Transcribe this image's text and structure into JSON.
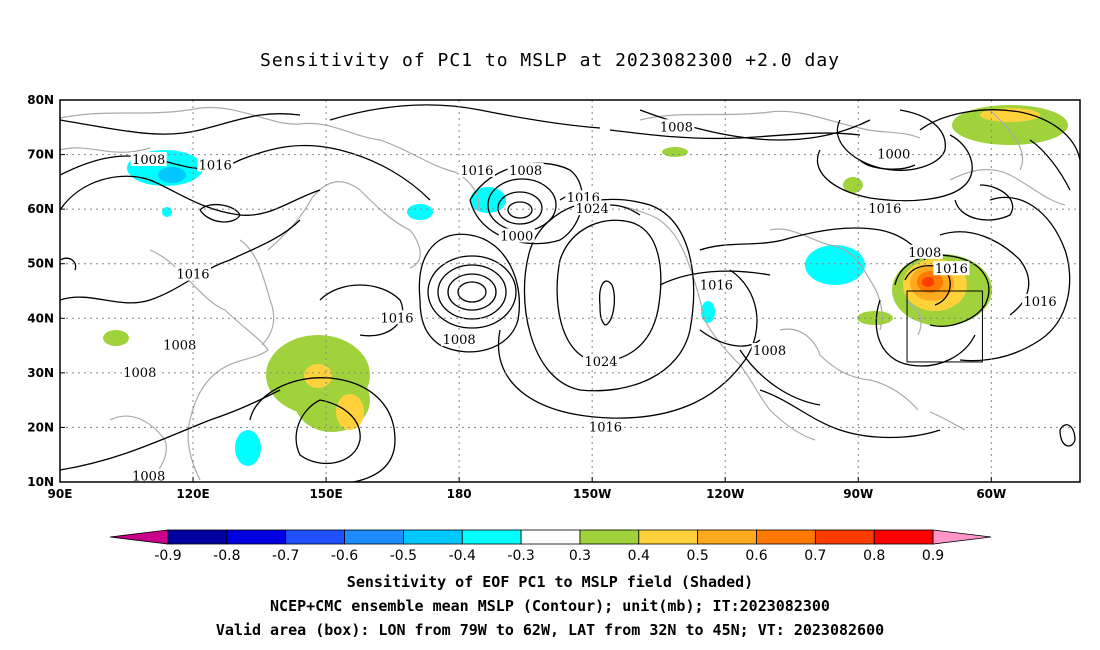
{
  "title": "Sensitivity of PC1 to MSLP at 2023082300 +2.0 day",
  "axes": {
    "lon_labels": [
      "90E",
      "120E",
      "150E",
      "180",
      "150W",
      "120W",
      "90W",
      "60W"
    ],
    "lat_labels": [
      "80N",
      "70N",
      "60N",
      "50N",
      "40N",
      "30N",
      "20N",
      "10N"
    ]
  },
  "contour_labels": [
    {
      "text": "1008",
      "lon": 110,
      "lat": 69
    },
    {
      "text": "1016",
      "lon": 125,
      "lat": 68
    },
    {
      "text": "1016",
      "lon": 184,
      "lat": 67
    },
    {
      "text": "1008",
      "lon": 195,
      "lat": 67
    },
    {
      "text": "1016",
      "lon": 208,
      "lat": 62
    },
    {
      "text": "1024",
      "lon": 210,
      "lat": 60
    },
    {
      "text": "1000",
      "lon": 193,
      "lat": 55
    },
    {
      "text": "1008",
      "lon": 229,
      "lat": 75
    },
    {
      "text": "1000",
      "lon": 278,
      "lat": 70
    },
    {
      "text": "1016",
      "lon": 276,
      "lat": 60
    },
    {
      "text": "1008",
      "lon": 285,
      "lat": 52
    },
    {
      "text": "1016",
      "lon": 291,
      "lat": 49
    },
    {
      "text": "1016",
      "lon": 120,
      "lat": 48
    },
    {
      "text": "1016",
      "lon": 238,
      "lat": 46
    },
    {
      "text": "1016",
      "lon": 311,
      "lat": 43
    },
    {
      "text": "1016",
      "lon": 166,
      "lat": 40
    },
    {
      "text": "1008",
      "lon": 180,
      "lat": 36
    },
    {
      "text": "1008",
      "lon": 117,
      "lat": 35
    },
    {
      "text": "1008",
      "lon": 250,
      "lat": 34
    },
    {
      "text": "1024",
      "lon": 212,
      "lat": 32
    },
    {
      "text": "1008",
      "lon": 108,
      "lat": 30
    },
    {
      "text": "1016",
      "lon": 213,
      "lat": 20
    },
    {
      "text": "1008",
      "lon": 110,
      "lat": 11
    }
  ],
  "valid_box": {
    "lon_min": -79,
    "lon_max": -62,
    "lat_min": 32,
    "lat_max": 45
  },
  "colorbar": {
    "labels": [
      "-0.9",
      "-0.8",
      "-0.7",
      "-0.6",
      "-0.5",
      "-0.4",
      "-0.3",
      "0.3",
      "0.4",
      "0.5",
      "0.6",
      "0.7",
      "0.8",
      "0.9"
    ],
    "colors": [
      "#0000a0",
      "#0000e0",
      "#1e50ff",
      "#1e8cff",
      "#00c8ff",
      "#00ffff",
      "#ffffff",
      "#a0d23c",
      "#ffd23c",
      "#ffaa1e",
      "#ff7800",
      "#ff3c00",
      "#ff0000"
    ],
    "low_color": "#c8008c",
    "high_color": "#ff96c8"
  },
  "caption": {
    "line1": "Sensitivity of EOF PC1 to MSLP field (Shaded)",
    "line2": "NCEP+CMC ensemble mean MSLP (Contour); unit(mb); IT:2023082300",
    "line3": "Valid area (box): LON from 79W to 62W, LAT from 32N to 45N; VT: 2023082600"
  }
}
